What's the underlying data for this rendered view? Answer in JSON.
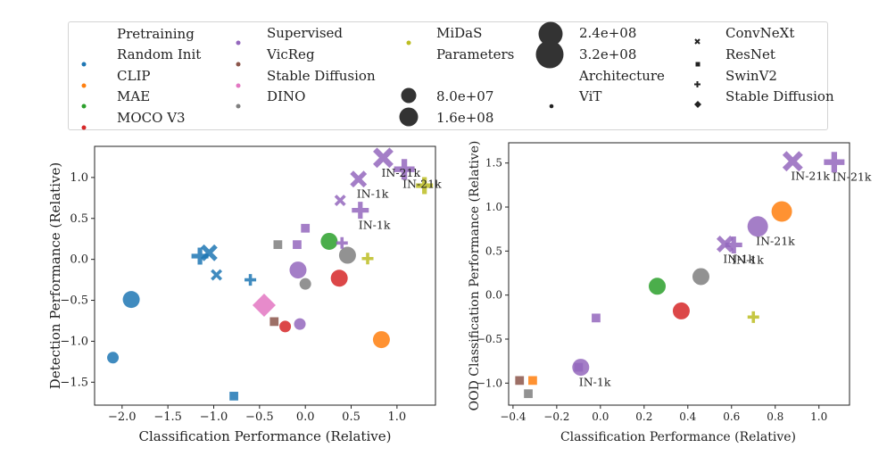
{
  "legend": {
    "colors": {
      "Random Init": "#1f77b4",
      "CLIP": "#ff7f0e",
      "MAE": "#2ca02c",
      "MOCO V3": "#d62728",
      "Supervised": "#9467bd",
      "VicReg": "#8c564b",
      "Stable Diffusion": "#e377c2",
      "DINO": "#7f7f7f",
      "MiDaS": "#bcbd22"
    },
    "pretraining_title": "Pretraining",
    "pretraining": [
      "Random Init",
      "CLIP",
      "MAE",
      "MOCO V3",
      "Supervised",
      "VicReg",
      "Stable Diffusion",
      "DINO",
      "MiDaS"
    ],
    "parameters_title": "Parameters",
    "parameters": [
      "8.0e+07",
      "1.6e+08",
      "2.4e+08",
      "3.2e+08"
    ],
    "architecture_title": "Architecture",
    "architectures": [
      {
        "name": "ViT",
        "icon": "dot-icon"
      },
      {
        "name": "ConvNeXt",
        "icon": "x-icon"
      },
      {
        "name": "ResNet",
        "icon": "square-icon"
      },
      {
        "name": "SwinV2",
        "icon": "plus-icon"
      },
      {
        "name": "Stable Diffusion",
        "icon": "diamond-icon"
      }
    ]
  },
  "chart_data": [
    {
      "type": "scatter",
      "xlabel": "Classification Performance (Relative)",
      "ylabel": "Detection Performance (Relative)",
      "xlim": [
        -2.3,
        1.42
      ],
      "ylim": [
        -1.78,
        1.38
      ],
      "xticks": [
        -2.0,
        -1.5,
        -1.0,
        -0.5,
        0.0,
        0.5,
        1.0
      ],
      "xtick_labels": [
        "−2.0",
        "−1.5",
        "−1.0",
        "−0.5",
        "0.0",
        "0.5",
        "1.0"
      ],
      "yticks": [
        -1.5,
        -1.0,
        -0.5,
        0.0,
        0.5,
        1.0
      ],
      "ytick_labels": [
        "−1.5",
        "−1.0",
        "−0.5",
        "0.0",
        "0.5",
        "1.0"
      ],
      "points": [
        {
          "x": -2.1,
          "y": -1.2,
          "pretraining": "Random Init",
          "architecture": "ViT",
          "size": 1
        },
        {
          "x": -1.9,
          "y": -0.49,
          "pretraining": "Random Init",
          "architecture": "ViT",
          "size": 2
        },
        {
          "x": -0.78,
          "y": -1.67,
          "pretraining": "Random Init",
          "architecture": "ResNet",
          "size": 1
        },
        {
          "x": -1.15,
          "y": 0.04,
          "pretraining": "Random Init",
          "architecture": "SwinV2",
          "size": 2
        },
        {
          "x": -1.05,
          "y": 0.08,
          "pretraining": "Random Init",
          "architecture": "ConvNeXt",
          "size": 2
        },
        {
          "x": -0.97,
          "y": -0.19,
          "pretraining": "Random Init",
          "architecture": "ConvNeXt",
          "size": 1
        },
        {
          "x": -0.6,
          "y": -0.25,
          "pretraining": "Random Init",
          "architecture": "SwinV2",
          "size": 1
        },
        {
          "x": 0.83,
          "y": -0.98,
          "pretraining": "CLIP",
          "architecture": "ViT",
          "size": 2
        },
        {
          "x": 0.26,
          "y": 0.22,
          "pretraining": "MAE",
          "architecture": "ViT",
          "size": 2
        },
        {
          "x": 0.37,
          "y": -0.23,
          "pretraining": "MOCO V3",
          "architecture": "ViT",
          "size": 2
        },
        {
          "x": -0.22,
          "y": -0.82,
          "pretraining": "MOCO V3",
          "architecture": "ViT",
          "size": 1
        },
        {
          "x": -0.08,
          "y": -0.13,
          "pretraining": "Supervised",
          "architecture": "ViT",
          "size": 2
        },
        {
          "x": -0.06,
          "y": -0.79,
          "pretraining": "Supervised",
          "architecture": "ViT",
          "size": 1
        },
        {
          "x": 0.0,
          "y": 0.38,
          "pretraining": "Supervised",
          "architecture": "ResNet",
          "size": 1
        },
        {
          "x": -0.09,
          "y": 0.18,
          "pretraining": "Supervised",
          "architecture": "ResNet",
          "size": 1
        },
        {
          "x": 0.4,
          "y": 0.2,
          "pretraining": "Supervised",
          "architecture": "SwinV2",
          "size": 1
        },
        {
          "x": 0.38,
          "y": 0.72,
          "pretraining": "Supervised",
          "architecture": "ConvNeXt",
          "size": 1
        },
        {
          "x": 0.58,
          "y": 0.98,
          "pretraining": "Supervised",
          "architecture": "ConvNeXt",
          "size": 2,
          "label": "IN-1k"
        },
        {
          "x": 0.6,
          "y": 0.6,
          "pretraining": "Supervised",
          "architecture": "SwinV2",
          "size": 2,
          "label": "IN-1k"
        },
        {
          "x": 0.85,
          "y": 1.24,
          "pretraining": "Supervised",
          "architecture": "ConvNeXt",
          "size": 3,
          "label": "IN-21k"
        },
        {
          "x": 1.08,
          "y": 1.1,
          "pretraining": "Supervised",
          "architecture": "SwinV2",
          "size": 3,
          "label": "IN-21k"
        },
        {
          "x": -0.34,
          "y": -0.76,
          "pretraining": "VicReg",
          "architecture": "ResNet",
          "size": 1
        },
        {
          "x": -0.45,
          "y": -0.56,
          "pretraining": "Stable Diffusion",
          "architecture": "Stable Diffusion",
          "size": 4
        },
        {
          "x": 0.0,
          "y": -0.3,
          "pretraining": "DINO",
          "architecture": "ViT",
          "size": 1
        },
        {
          "x": 0.46,
          "y": 0.05,
          "pretraining": "DINO",
          "architecture": "ViT",
          "size": 2
        },
        {
          "x": -0.3,
          "y": 0.18,
          "pretraining": "DINO",
          "architecture": "ResNet",
          "size": 1
        },
        {
          "x": 0.68,
          "y": 0.01,
          "pretraining": "MiDaS",
          "architecture": "SwinV2",
          "size": 1
        },
        {
          "x": 1.3,
          "y": 0.9,
          "pretraining": "MiDaS",
          "architecture": "SwinV2",
          "size": 2
        }
      ]
    },
    {
      "type": "scatter",
      "xlabel": "Classification Performance (Relative)",
      "ylabel": "OOD Classification Performance (Relative)",
      "xlim": [
        -0.42,
        1.14
      ],
      "ylim": [
        -1.25,
        1.73
      ],
      "xticks": [
        -0.4,
        -0.2,
        0.0,
        0.2,
        0.4,
        0.6,
        0.8,
        1.0
      ],
      "xtick_labels": [
        "−0.4",
        "−0.2",
        "0.0",
        "0.2",
        "0.4",
        "0.6",
        "0.8",
        "1.0"
      ],
      "yticks": [
        -1.0,
        -0.5,
        0.0,
        0.5,
        1.0,
        1.5
      ],
      "ytick_labels": [
        "−1.0",
        "−0.5",
        "0.0",
        "0.5",
        "1.0",
        "1.5"
      ],
      "points": [
        {
          "x": -0.37,
          "y": -0.97,
          "pretraining": "VicReg",
          "architecture": "ResNet",
          "size": 1
        },
        {
          "x": -0.31,
          "y": -0.97,
          "pretraining": "CLIP",
          "architecture": "ResNet",
          "size": 1
        },
        {
          "x": -0.33,
          "y": -1.12,
          "pretraining": "DINO",
          "architecture": "ResNet",
          "size": 1
        },
        {
          "x": -0.1,
          "y": -0.82,
          "pretraining": "Supervised",
          "architecture": "ResNet",
          "size": 1
        },
        {
          "x": -0.09,
          "y": -0.82,
          "pretraining": "Supervised",
          "architecture": "ViT",
          "size": 2,
          "label": "IN-1k"
        },
        {
          "x": -0.02,
          "y": -0.26,
          "pretraining": "Supervised",
          "architecture": "ResNet",
          "size": 1
        },
        {
          "x": 0.26,
          "y": 0.1,
          "pretraining": "MAE",
          "architecture": "ViT",
          "size": 2
        },
        {
          "x": 0.37,
          "y": -0.18,
          "pretraining": "MOCO V3",
          "architecture": "ViT",
          "size": 2
        },
        {
          "x": 0.46,
          "y": 0.21,
          "pretraining": "DINO",
          "architecture": "ViT",
          "size": 2
        },
        {
          "x": 0.57,
          "y": 0.58,
          "pretraining": "Supervised",
          "architecture": "ConvNeXt",
          "size": 2,
          "label": "IN-1k"
        },
        {
          "x": 0.61,
          "y": 0.57,
          "pretraining": "Supervised",
          "architecture": "SwinV2",
          "size": 2,
          "label": "IN-1k"
        },
        {
          "x": 0.72,
          "y": 0.78,
          "pretraining": "Supervised",
          "architecture": "ViT",
          "size": 3,
          "label": "IN-21k"
        },
        {
          "x": 0.83,
          "y": 0.95,
          "pretraining": "CLIP",
          "architecture": "ViT",
          "size": 3
        },
        {
          "x": 0.7,
          "y": -0.25,
          "pretraining": "MiDaS",
          "architecture": "SwinV2",
          "size": 1
        },
        {
          "x": 0.88,
          "y": 1.52,
          "pretraining": "Supervised",
          "architecture": "ConvNeXt",
          "size": 3,
          "label": "IN-21k"
        },
        {
          "x": 1.07,
          "y": 1.51,
          "pretraining": "Supervised",
          "architecture": "SwinV2",
          "size": 3,
          "label": "IN-21k"
        }
      ]
    }
  ]
}
